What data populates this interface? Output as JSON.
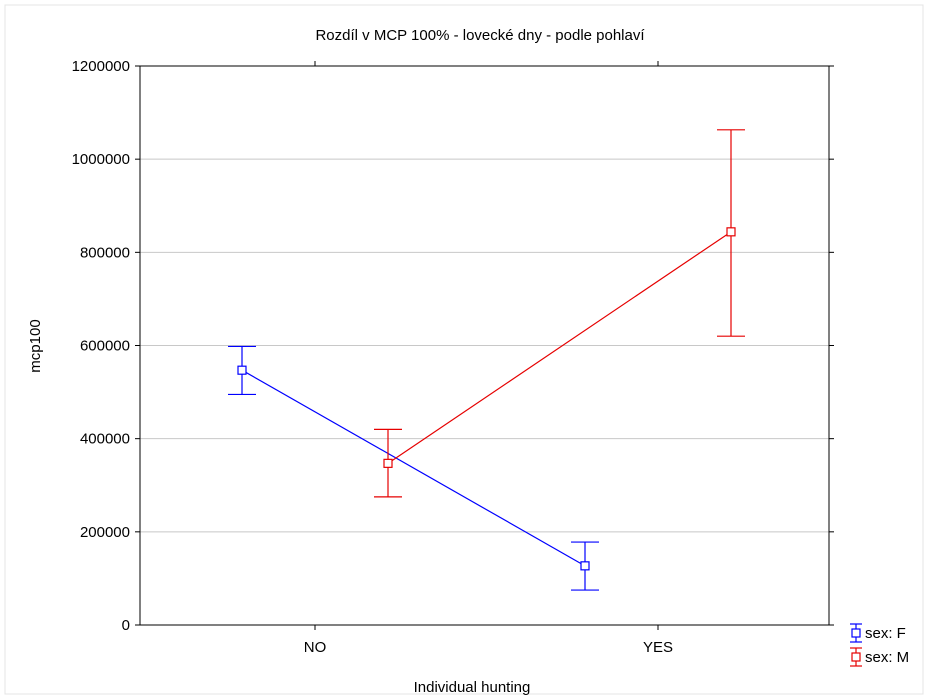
{
  "chart_data": {
    "type": "line",
    "title": "Rozdíl v MCP 100% - lovecké dny - podle pohlaví",
    "xlabel": "Individual hunting",
    "ylabel": "mcp100",
    "categories": [
      "NO",
      "YES"
    ],
    "ylim": [
      0,
      1200000
    ],
    "yticks": [
      0,
      200000,
      400000,
      600000,
      800000,
      1000000,
      1200000
    ],
    "ytick_labels": [
      "0",
      "200000",
      "400000",
      "600000",
      "800000",
      "1000000",
      "1200000"
    ],
    "grid": true,
    "legend_position": "bottom-right",
    "error_bars": true,
    "series": [
      {
        "name": "sex: F",
        "color": "#0000ff",
        "marker": "square",
        "values": [
          547000,
          127000
        ],
        "lower": [
          495000,
          75000
        ],
        "upper": [
          598000,
          178000
        ]
      },
      {
        "name": "sex: M",
        "color": "#e60000",
        "marker": "square",
        "values": [
          347000,
          844000
        ],
        "upper": [
          420000,
          1063000
        ],
        "lower": [
          275000,
          620000
        ]
      }
    ]
  }
}
